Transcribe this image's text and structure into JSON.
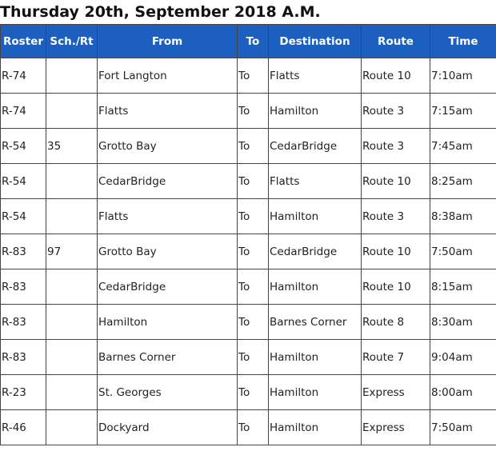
{
  "header": {
    "title": "Thursday 20th, September 2018 A.M."
  },
  "table": {
    "columns": [
      "Roster",
      "Sch./Rt",
      "From",
      "To",
      "Destination",
      "Route",
      "Time"
    ],
    "rows": [
      [
        "R-74",
        null,
        "Fort Langton",
        "To",
        "Flatts",
        "Route 10",
        "7:10am"
      ],
      [
        "R-74",
        null,
        "Flatts",
        "To",
        "Hamilton",
        "Route 3",
        "7:15am"
      ],
      [
        "R-54",
        "35",
        "Grotto Bay",
        "To",
        "CedarBridge",
        "Route 3",
        "7:45am"
      ],
      [
        "R-54",
        null,
        "CedarBridge",
        "To",
        "Flatts",
        "Route 10",
        "8:25am"
      ],
      [
        "R-54",
        null,
        "Flatts",
        "To",
        "Hamilton",
        "Route 3",
        "8:38am"
      ],
      [
        "R-83",
        "97",
        "Grotto Bay",
        "To",
        "CedarBridge",
        "Route 10",
        "7:50am"
      ],
      [
        "R-83",
        null,
        "CedarBridge",
        "To",
        "Hamilton",
        "Route 10",
        "8:15am"
      ],
      [
        "R-83",
        null,
        "Hamilton",
        "To",
        "Barnes Corner",
        "Route 8",
        "8:30am"
      ],
      [
        "R-83",
        null,
        "Barnes Corner",
        "To",
        "Hamilton",
        "Route 7",
        "9:04am"
      ],
      [
        "R-23",
        null,
        "St. Georges",
        "To",
        "Hamilton",
        "Express",
        "8:00am"
      ],
      [
        "R-46",
        null,
        "Dockyard",
        "To",
        "Hamilton",
        "Express",
        "7:50am"
      ]
    ]
  }
}
